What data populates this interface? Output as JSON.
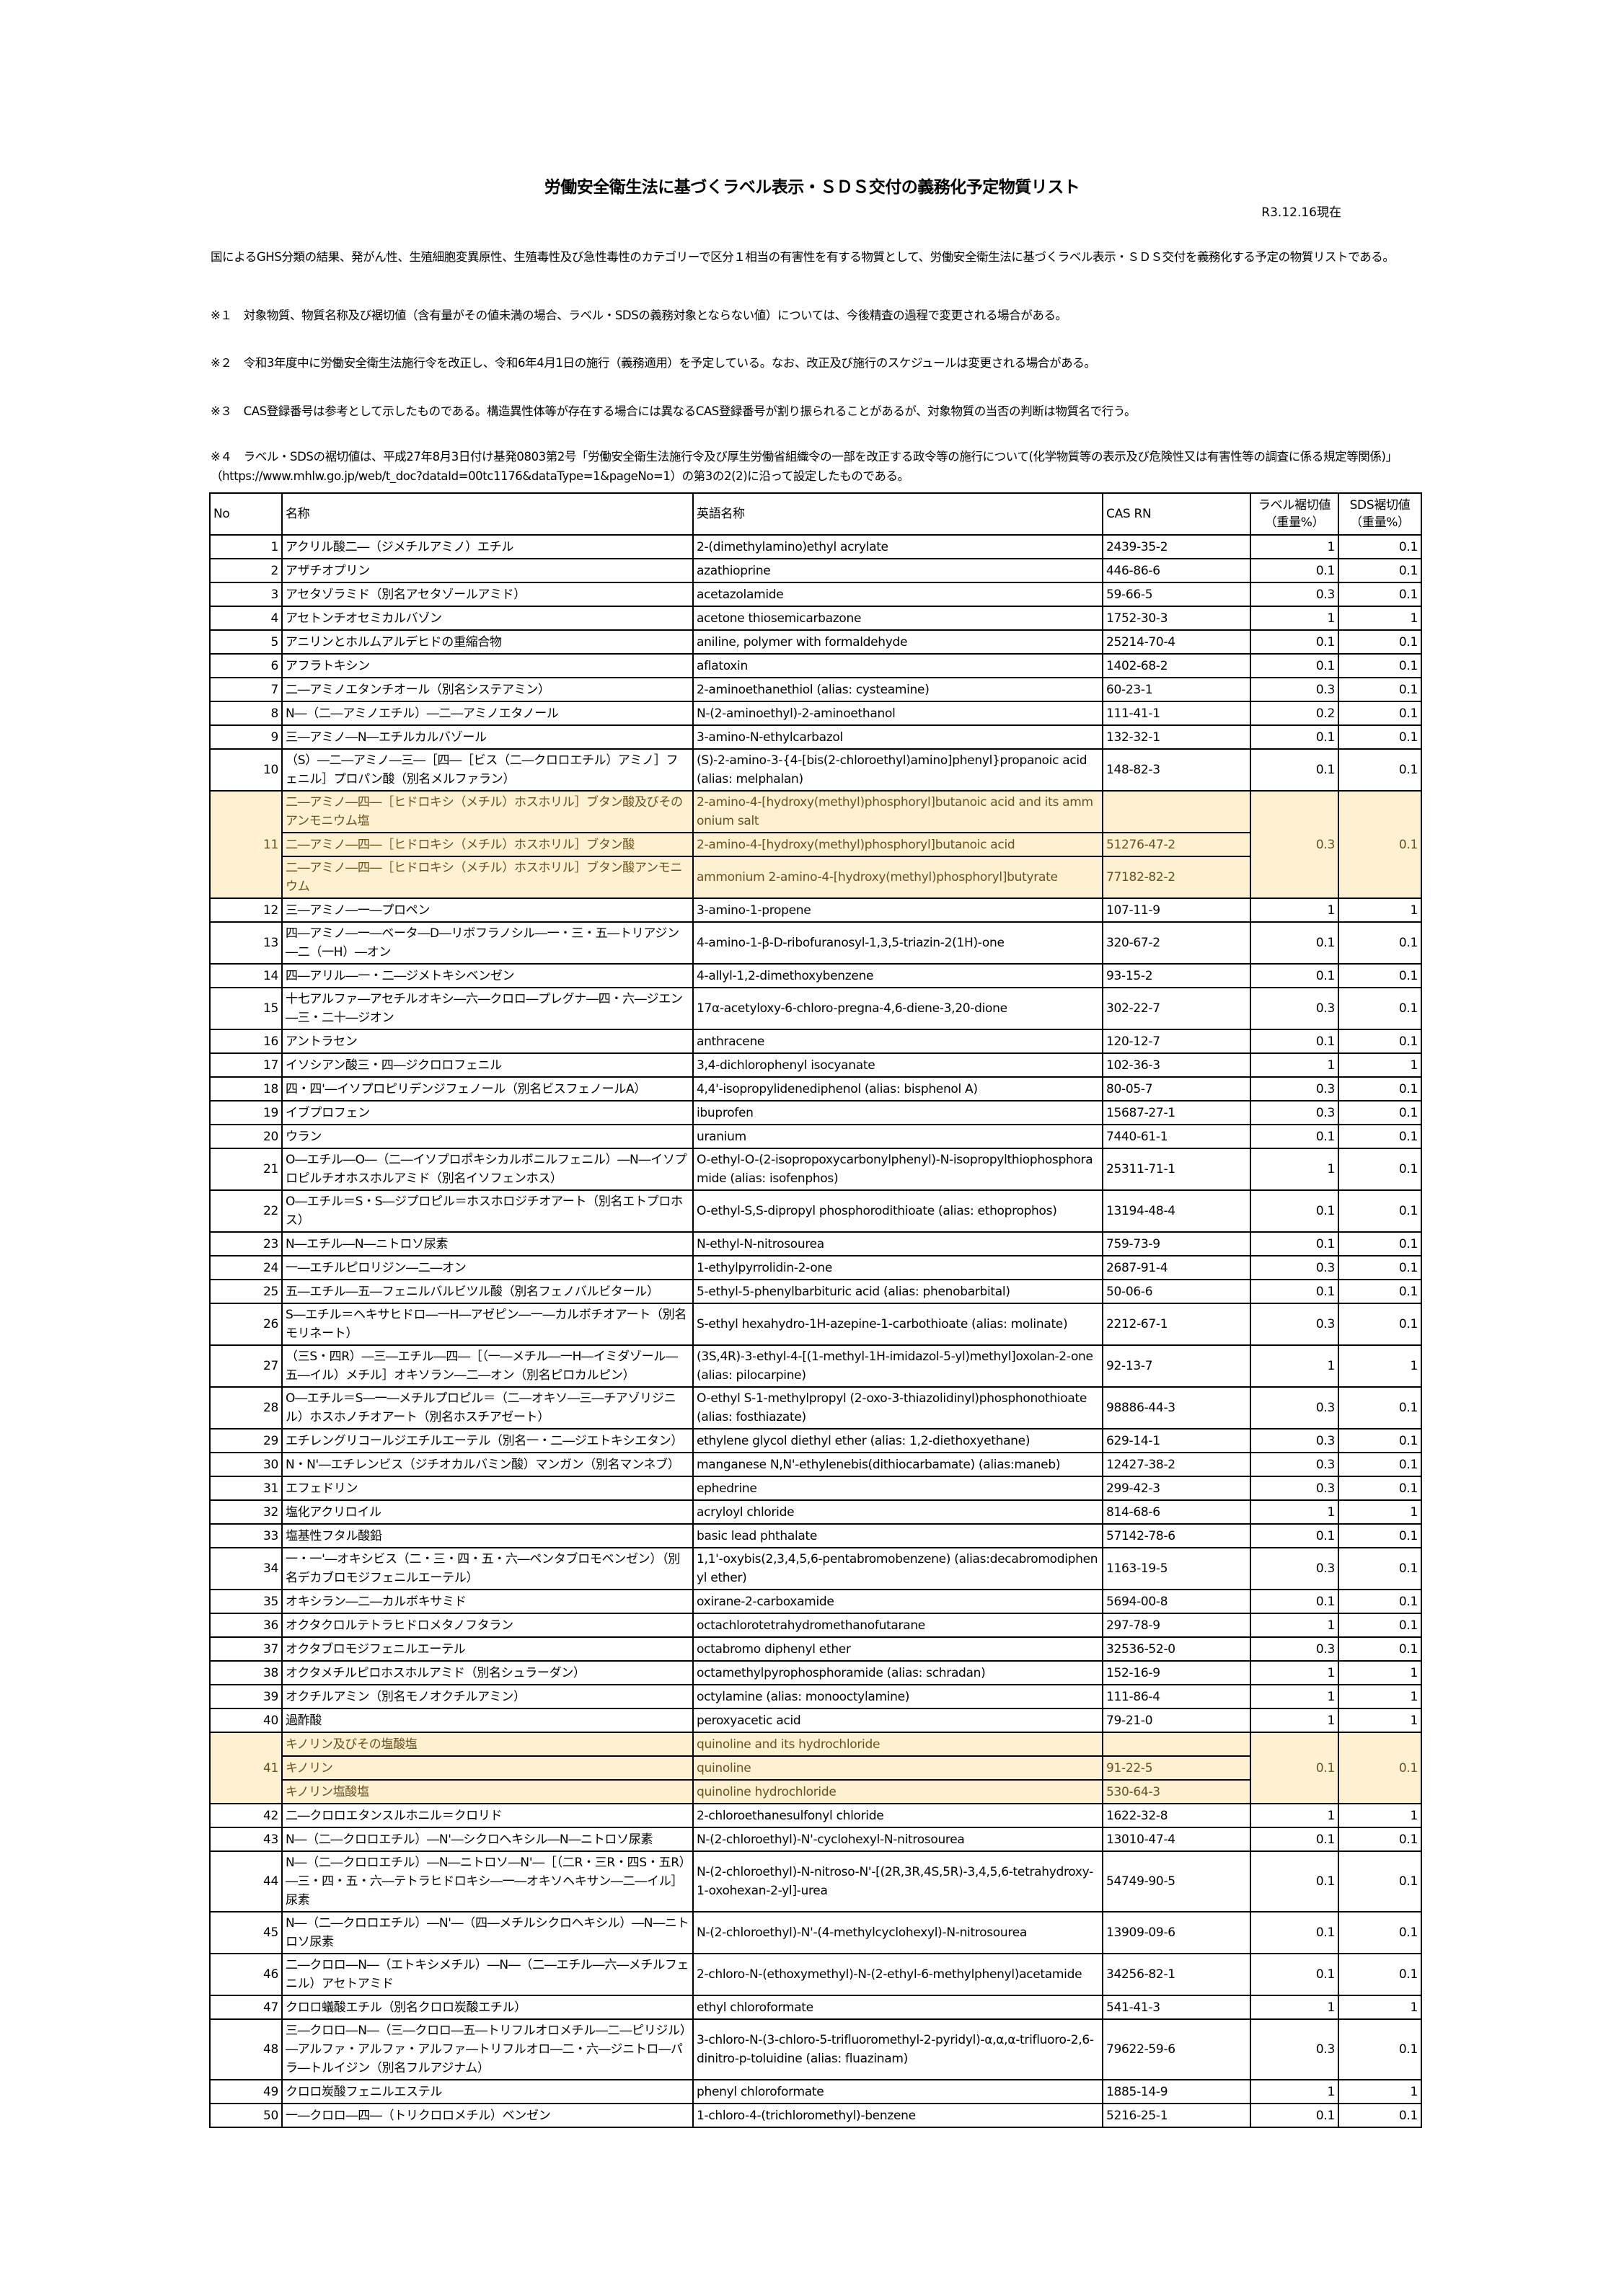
{
  "title": "労働安全衛生法に基づくラベル表示・ＳＤＳ交付の義務化予定物質リスト",
  "date": "R3.12.16現在",
  "intro": "国によるGHS分類の結果、発がん性、生殖細胞変異原性、生殖毒性及び急性毒性のカテゴリーで区分１相当の有害性を有する物質として、労働安全衛生法に基づくラベル表示・ＳＤＳ交付を義務化する予定の物質リストである。",
  "notes": [
    "※１　対象物質、物質名称及び裾切値（含有量がその値未満の場合、ラベル・SDSの義務対象とならない値）については、今後精査の過程で変更される場合がある。",
    "※２　令和3年度中に労働安全衛生法施行令を改正し、令和6年4月1日の施行（義務適用）を予定している。なお、改正及び施行のスケジュールは変更される場合がある。",
    "※３　CAS登録番号は参考として示したものである。構造異性体等が存在する場合には異なるCAS登録番号が割り振られることがあるが、対象物質の当否の判断は物質名で行う。",
    "※４　ラベル・SDSの裾切値は、平成27年8月3日付け基発0803第2号「労働安全衛生法施行令及び厚生労働省組織令の一部を改正する政令等の施行について(化学物質等の表示及び危険性又は有害性等の調査に係る規定等関係)」（https://www.mhlw.go.jp/web/t_doc?dataId=00tc1176&dataType=1&pageNo=1）の第3の2(2)に沿って設定したものである。"
  ],
  "table": {
    "headers": {
      "no": "No",
      "ja": "名称",
      "en": "英語名称",
      "cas": "CAS RN",
      "label": "ラベル裾切値（重量%）",
      "sds": "SDS裾切値（重量%）"
    },
    "highlight_color": "#fdf1d2",
    "rows": [
      {
        "no": "1",
        "ja": "アクリル酸二―（ジメチルアミノ）エチル",
        "en": "2-(dimethylamino)ethyl acrylate",
        "cas": "2439-35-2",
        "label": "1",
        "sds": "0.1"
      },
      {
        "no": "2",
        "ja": "アザチオプリン",
        "en": "azathioprine",
        "cas": "446-86-6",
        "label": "0.1",
        "sds": "0.1"
      },
      {
        "no": "3",
        "ja": "アセタゾラミド（別名アセタゾールアミド）",
        "en": "acetazolamide",
        "cas": "59-66-5",
        "label": "0.3",
        "sds": "0.1"
      },
      {
        "no": "4",
        "ja": "アセトンチオセミカルバゾン",
        "en": "acetone thiosemicarbazone",
        "cas": "1752-30-3",
        "label": "1",
        "sds": "1"
      },
      {
        "no": "5",
        "ja": "アニリンとホルムアルデヒドの重縮合物",
        "en": "aniline, polymer with formaldehyde",
        "cas": "25214-70-4",
        "label": "0.1",
        "sds": "0.1"
      },
      {
        "no": "6",
        "ja": "アフラトキシン",
        "en": "aflatoxin",
        "cas": "1402-68-2",
        "label": "0.1",
        "sds": "0.1"
      },
      {
        "no": "7",
        "ja": "二―アミノエタンチオール（別名システアミン）",
        "en": "2-aminoethanethiol (alias: cysteamine)",
        "cas": "60-23-1",
        "label": "0.3",
        "sds": "0.1"
      },
      {
        "no": "8",
        "ja": "N―（二―アミノエチル）―二―アミノエタノール",
        "en": "N-(2-aminoethyl)-2-aminoethanol",
        "cas": "111-41-1",
        "label": "0.2",
        "sds": "0.1"
      },
      {
        "no": "9",
        "ja": "三―アミノ―N―エチルカルバゾール",
        "en": "3-amino-N-ethylcarbazol",
        "cas": "132-32-1",
        "label": "0.1",
        "sds": "0.1"
      },
      {
        "no": "10",
        "ja": "（S）―二―アミノ―三―［四―［ビス（二―クロロエチル）アミノ］フェニル］プロパン酸（別名メルファラン）",
        "en": "(S)-2-amino-3-{4-[bis(2-chloroethyl)amino]phenyl}propanoic acid (alias: melphalan)",
        "cas": "148-82-3",
        "label": "0.1",
        "sds": "0.1"
      },
      {
        "no": "11",
        "label": "0.3",
        "sds": "0.1",
        "sub": [
          {
            "ja": "二―アミノ―四―［ヒドロキシ（メチル）ホスホリル］ブタン酸及びそのアンモニウム塩",
            "en": "2-amino-4-[hydroxy(methyl)phosphoryl]butanoic acid and its ammonium salt",
            "cas": ""
          },
          {
            "ja": "二―アミノ―四―［ヒドロキシ（メチル）ホスホリル］ブタン酸",
            "en": "2-amino-4-[hydroxy(methyl)phosphoryl]butanoic acid",
            "cas": "51276-47-2"
          },
          {
            "ja": "二―アミノ―四―［ヒドロキシ（メチル）ホスホリル］ブタン酸アンモニウム",
            "en": "ammonium 2-amino-4-[hydroxy(methyl)phosphoryl]butyrate",
            "cas": "77182-82-2"
          }
        ]
      },
      {
        "no": "12",
        "ja": "三―アミノ―一―プロペン",
        "en": "3-amino-1-propene",
        "cas": "107-11-9",
        "label": "1",
        "sds": "1"
      },
      {
        "no": "13",
        "ja": "四―アミノ―一―ベータ―D―リボフラノシル―一・三・五―トリアジン―二（一H）―オン",
        "en": "4-amino-1-β-D-ribofuranosyl-1,3,5-triazin-2(1H)-one",
        "cas": "320-67-2",
        "label": "0.1",
        "sds": "0.1"
      },
      {
        "no": "14",
        "ja": "四―アリル―一・二―ジメトキシベンゼン",
        "en": "4-allyl-1,2-dimethoxybenzene",
        "cas": "93-15-2",
        "label": "0.1",
        "sds": "0.1"
      },
      {
        "no": "15",
        "ja": "十七アルファ―アセチルオキシ―六―クロロ―プレグナ―四・六―ジエン―三・二十―ジオン",
        "en": "17α-acetyloxy-6-chloro-pregna-4,6-diene-3,20-dione",
        "cas": "302-22-7",
        "label": "0.3",
        "sds": "0.1"
      },
      {
        "no": "16",
        "ja": "アントラセン",
        "en": "anthracene",
        "cas": "120-12-7",
        "label": "0.1",
        "sds": "0.1"
      },
      {
        "no": "17",
        "ja": "イソシアン酸三・四―ジクロロフェニル",
        "en": "3,4-dichlorophenyl isocyanate",
        "cas": "102-36-3",
        "label": "1",
        "sds": "1"
      },
      {
        "no": "18",
        "ja": "四・四'―イソプロピリデンジフェノール（別名ビスフェノールA）",
        "en": "4,4'-isopropylidenediphenol (alias: bisphenol A)",
        "cas": "80-05-7",
        "label": "0.3",
        "sds": "0.1"
      },
      {
        "no": "19",
        "ja": "イブプロフェン",
        "en": "ibuprofen",
        "cas": "15687-27-1",
        "label": "0.3",
        "sds": "0.1"
      },
      {
        "no": "20",
        "ja": "ウラン",
        "en": "uranium",
        "cas": "7440-61-1",
        "label": "0.1",
        "sds": "0.1"
      },
      {
        "no": "21",
        "ja": "O―エチル―O―（二―イソプロポキシカルボニルフェニル）―N―イソプロピルチオホスホルアミド（別名イソフェンホス）",
        "en": "O-ethyl-O-(2-isopropoxycarbonylphenyl)-N-isopropylthiophosphoramide (alias: isofenphos)",
        "cas": "25311-71-1",
        "label": "1",
        "sds": "0.1"
      },
      {
        "no": "22",
        "ja": "O―エチル＝S・S―ジプロピル＝ホスホロジチオアート（別名エトプロホス）",
        "en": "O-ethyl-S,S-dipropyl phosphorodithioate (alias: ethoprophos)",
        "cas": "13194-48-4",
        "label": "0.1",
        "sds": "0.1"
      },
      {
        "no": "23",
        "ja": "N―エチル―N―ニトロソ尿素",
        "en": "N-ethyl-N-nitrosourea",
        "cas": "759-73-9",
        "label": "0.1",
        "sds": "0.1"
      },
      {
        "no": "24",
        "ja": "一―エチルピロリジン―二―オン",
        "en": "1-ethylpyrrolidin-2-one",
        "cas": "2687-91-4",
        "label": "0.3",
        "sds": "0.1"
      },
      {
        "no": "25",
        "ja": "五―エチル―五―フェニルバルビツル酸（別名フェノバルビタール）",
        "en": "5-ethyl-5-phenylbarbituric acid (alias: phenobarbital)",
        "cas": "50-06-6",
        "label": "0.1",
        "sds": "0.1"
      },
      {
        "no": "26",
        "ja": "S―エチル＝ヘキサヒドロ―一H―アゼピン―一―カルボチオアート（別名モリネート）",
        "en": "S-ethyl hexahydro-1H-azepine-1-carbothioate (alias: molinate)",
        "cas": "2212-67-1",
        "label": "0.3",
        "sds": "0.1"
      },
      {
        "no": "27",
        "ja": "（三S・四R）―三―エチル―四―［（一―メチル―一H―イミダゾール―五―イル）メチル］オキソラン―二―オン（別名ピロカルピン）",
        "en": "(3S,4R)-3-ethyl-4-[(1-methyl-1H-imidazol-5-yl)methyl]oxolan-2-one (alias: pilocarpine)",
        "cas": "92-13-7",
        "label": "1",
        "sds": "1"
      },
      {
        "no": "28",
        "ja": "O―エチル＝S―一―メチルプロピル＝（二―オキソ―三―チアゾリジニル）ホスホノチオアート（別名ホスチアゼート）",
        "en": "O-ethyl S-1-methylpropyl (2-oxo-3-thiazolidinyl)phosphonothioate (alias: fosthiazate)",
        "cas": "98886-44-3",
        "label": "0.3",
        "sds": "0.1"
      },
      {
        "no": "29",
        "ja": "エチレングリコールジエチルエーテル（別名一・二―ジエトキシエタン）",
        "en": "ethylene glycol diethyl ether (alias: 1,2-diethoxyethane)",
        "cas": "629-14-1",
        "label": "0.3",
        "sds": "0.1"
      },
      {
        "no": "30",
        "ja": "N・N'―エチレンビス（ジチオカルバミン酸）マンガン（別名マンネブ）",
        "en": "manganese N,N'-ethylenebis(dithiocarbamate) (alias:maneb)",
        "cas": "12427-38-2",
        "label": "0.3",
        "sds": "0.1"
      },
      {
        "no": "31",
        "ja": "エフェドリン",
        "en": "ephedrine",
        "cas": "299-42-3",
        "label": "0.3",
        "sds": "0.1"
      },
      {
        "no": "32",
        "ja": "塩化アクリロイル",
        "en": "acryloyl chloride",
        "cas": "814-68-6",
        "label": "1",
        "sds": "1"
      },
      {
        "no": "33",
        "ja": "塩基性フタル酸鉛",
        "en": "basic lead phthalate",
        "cas": "57142-78-6",
        "label": "0.1",
        "sds": "0.1"
      },
      {
        "no": "34",
        "ja": "一・一'―オキシビス（二・三・四・五・六―ペンタブロモベンゼン）（別名デカブロモジフェニルエーテル）",
        "en": "1,1'-oxybis(2,3,4,5,6-pentabromobenzene) (alias:decabromodiphenyl ether)",
        "cas": "1163-19-5",
        "label": "0.3",
        "sds": "0.1"
      },
      {
        "no": "35",
        "ja": "オキシラン―二―カルボキサミド",
        "en": "oxirane-2-carboxamide",
        "cas": "5694-00-8",
        "label": "0.1",
        "sds": "0.1"
      },
      {
        "no": "36",
        "ja": "オクタクロルテトラヒドロメタノフタラン",
        "en": "octachlorotetrahydromethanofutarane",
        "cas": "297-78-9",
        "label": "1",
        "sds": "0.1"
      },
      {
        "no": "37",
        "ja": "オクタブロモジフェニルエーテル",
        "en": "octabromo diphenyl ether",
        "cas": "32536-52-0",
        "label": "0.3",
        "sds": "0.1"
      },
      {
        "no": "38",
        "ja": "オクタメチルピロホスホルアミド（別名シュラーダン）",
        "en": "octamethylpyrophosphoramide (alias: schradan)",
        "cas": "152-16-9",
        "label": "1",
        "sds": "1"
      },
      {
        "no": "39",
        "ja": "オクチルアミン（別名モノオクチルアミン）",
        "en": "octylamine (alias: monooctylamine)",
        "cas": "111-86-4",
        "label": "1",
        "sds": "1"
      },
      {
        "no": "40",
        "ja": "過酢酸",
        "en": "peroxyacetic acid",
        "cas": "79-21-0",
        "label": "1",
        "sds": "1"
      },
      {
        "no": "41",
        "label": "0.1",
        "sds": "0.1",
        "sub": [
          {
            "ja": "キノリン及びその塩酸塩",
            "en": "quinoline and its hydrochloride",
            "cas": ""
          },
          {
            "ja": "キノリン",
            "en": "quinoline",
            "cas": "91-22-5"
          },
          {
            "ja": "キノリン塩酸塩",
            "en": "quinoline hydrochloride",
            "cas": "530-64-3"
          }
        ]
      },
      {
        "no": "42",
        "ja": "二―クロロエタンスルホニル＝クロリド",
        "en": "2-chloroethanesulfonyl chloride",
        "cas": "1622-32-8",
        "label": "1",
        "sds": "1"
      },
      {
        "no": "43",
        "ja": "N―（二―クロロエチル）―N'―シクロヘキシル―N―ニトロソ尿素",
        "en": "N-(2-chloroethyl)-N'-cyclohexyl-N-nitrosourea",
        "cas": "13010-47-4",
        "label": "0.1",
        "sds": "0.1"
      },
      {
        "no": "44",
        "ja": "N―（二―クロロエチル）―N―ニトロソ―N'―［（二R・三R・四S・五R）―三・四・五・六―テトラヒドロキシ―一―オキソヘキサン―二―イル］尿素",
        "en": "N-(2-chloroethyl)-N-nitroso-N'-[(2R,3R,4S,5R)-3,4,5,6-tetrahydroxy-1-oxohexan-2-yl]-urea",
        "cas": "54749-90-5",
        "label": "0.1",
        "sds": "0.1"
      },
      {
        "no": "45",
        "ja": "N―（二―クロロエチル）―N'―（四―メチルシクロヘキシル）―N―ニトロソ尿素",
        "en": "N-(2-chloroethyl)-N'-(4-methylcyclohexyl)-N-nitrosourea",
        "cas": "13909-09-6",
        "label": "0.1",
        "sds": "0.1"
      },
      {
        "no": "46",
        "ja": "二―クロロ―N―（エトキシメチル）―N―（二―エチル―六―メチルフェニル）アセトアミド",
        "en": "2-chloro-N-(ethoxymethyl)-N-(2-ethyl-6-methylphenyl)acetamide",
        "cas": "34256-82-1",
        "label": "0.1",
        "sds": "0.1"
      },
      {
        "no": "47",
        "ja": "クロロ蟻酸エチル（別名クロロ炭酸エチル）",
        "en": "ethyl chloroformate",
        "cas": "541-41-3",
        "label": "1",
        "sds": "1"
      },
      {
        "no": "48",
        "ja": "三―クロロ―N―（三―クロロ―五―トリフルオロメチル―二―ピリジル）―アルファ・アルファ・アルファ―トリフルオロ―二・六―ジニトロ―パラ―トルイジン（別名フルアジナム）",
        "en": "3-chloro-N-(3-chloro-5-trifluoromethyl-2-pyridyl)-α,α,α-trifluoro-2,6-dinitro-p-toluidine (alias: fluazinam)",
        "cas": "79622-59-6",
        "label": "0.3",
        "sds": "0.1"
      },
      {
        "no": "49",
        "ja": "クロロ炭酸フェニルエステル",
        "en": "phenyl chloroformate",
        "cas": "1885-14-9",
        "label": "1",
        "sds": "1"
      },
      {
        "no": "50",
        "ja": "一―クロロ―四―（トリクロロメチル）ベンゼン",
        "en": "1-chloro-4-(trichloromethyl)-benzene",
        "cas": "5216-25-1",
        "label": "0.1",
        "sds": "0.1"
      }
    ]
  }
}
